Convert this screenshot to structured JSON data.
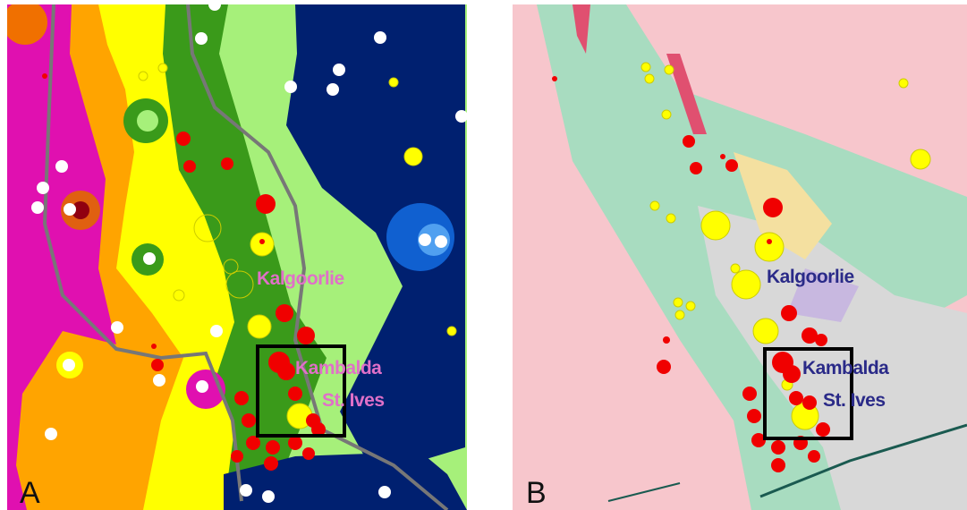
{
  "panels": [
    {
      "label": "A",
      "places": [
        "Kalgoorlie",
        "Kambalda",
        "St. Ives"
      ]
    },
    {
      "label": "B",
      "places": [
        "Kalgoorlie",
        "Kambalda",
        "St. Ives"
      ]
    }
  ]
}
